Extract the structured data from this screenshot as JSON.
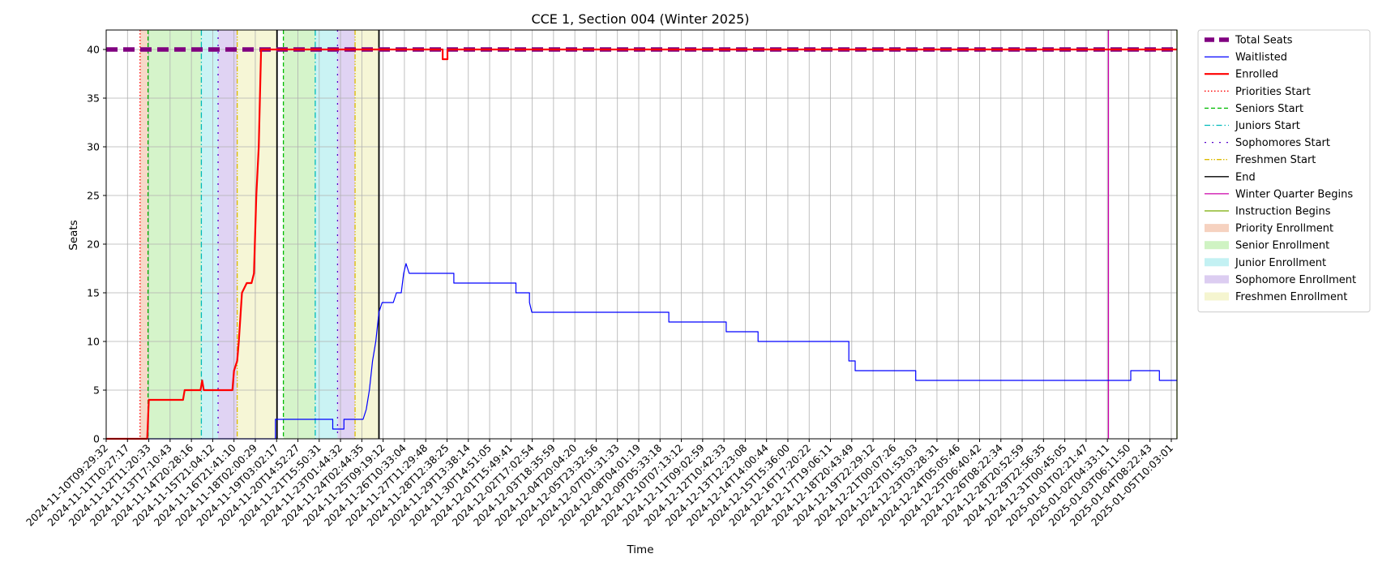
{
  "chart_data": {
    "type": "line",
    "title": "CCE 1, Section 004 (Winter 2025)",
    "xlabel": "Time",
    "ylabel": "Seats",
    "ylim": [
      0,
      42
    ],
    "yticks": [
      0,
      5,
      10,
      15,
      20,
      25,
      30,
      35,
      40
    ],
    "grid": true,
    "legend_position": "outside-right",
    "x_range": [
      "2024-11-10T09:29:32",
      "2025-01-05T10:03:01"
    ],
    "x_tick_labels": [
      "2024-11-10T09:29:32",
      "2024-11-11T10:27:17",
      "2024-11-12T11:20:33",
      "2024-11-13T17:10:43",
      "2024-11-14T20:28:16",
      "2024-11-15T21:04:12",
      "2024-11-16T21:41:10",
      "2024-11-18T02:00:29",
      "2024-11-19T03:02:17",
      "2024-11-20T14:52:27",
      "2024-11-21T15:50:31",
      "2024-11-23T01:44:32",
      "2024-11-24T02:44:35",
      "2024-11-25T09:19:12",
      "2024-11-26T10:33:04",
      "2024-11-27T11:29:48",
      "2024-11-28T12:38:25",
      "2024-11-29T13:38:14",
      "2024-11-30T14:51:05",
      "2024-12-01T15:49:41",
      "2024-12-02T17:02:54",
      "2024-12-03T18:35:59",
      "2024-12-04T20:04:20",
      "2024-12-05T23:32:56",
      "2024-12-07T01:31:33",
      "2024-12-08T04:01:19",
      "2024-12-09T05:33:18",
      "2024-12-10T07:13:12",
      "2024-12-11T09:02:59",
      "2024-12-12T10:42:33",
      "2024-12-13T12:23:08",
      "2024-12-14T14:00:44",
      "2024-12-15T15:36:00",
      "2024-12-16T17:20:22",
      "2024-12-17T19:06:11",
      "2024-12-18T20:43:49",
      "2024-12-19T22:29:12",
      "2024-12-21T00:07:26",
      "2024-12-22T01:53:03",
      "2024-12-23T03:28:31",
      "2024-12-24T05:05:46",
      "2024-12-25T06:40:42",
      "2024-12-26T08:22:34",
      "2024-12-28T20:52:59",
      "2024-12-29T22:56:35",
      "2024-12-31T00:45:05",
      "2025-01-01T02:21:47",
      "2025-01-02T04:33:11",
      "2025-01-03T06:11:50",
      "2025-01-04T08:22:43",
      "2025-01-05T10:03:01"
    ],
    "series": [
      {
        "name": "Total Seats",
        "color": "#800080",
        "style": "dashed-thick",
        "points": [
          [
            "2024-11-10T09:29:32",
            40
          ],
          [
            "2025-01-05T10:03:01",
            40
          ]
        ]
      },
      {
        "name": "Waitlisted",
        "color": "#0000ff",
        "style": "solid",
        "points": [
          [
            "2024-11-10T09:29:32",
            0
          ],
          [
            "2024-11-19T06:00:00",
            0
          ],
          [
            "2024-11-19T06:00:00",
            2
          ],
          [
            "2024-11-22T06:00:00",
            2
          ],
          [
            "2024-11-22T06:00:00",
            1
          ],
          [
            "2024-11-22T20:00:00",
            1
          ],
          [
            "2024-11-22T20:00:00",
            2
          ],
          [
            "2024-11-23T20:00:00",
            2
          ],
          [
            "2024-11-24T00:00:00",
            3
          ],
          [
            "2024-11-24T04:00:00",
            5
          ],
          [
            "2024-11-24T08:00:00",
            8
          ],
          [
            "2024-11-24T12:00:00",
            10
          ],
          [
            "2024-11-24T16:00:00",
            13
          ],
          [
            "2024-11-24T20:00:00",
            14
          ],
          [
            "2024-11-25T10:00:00",
            14
          ],
          [
            "2024-11-25T14:00:00",
            15
          ],
          [
            "2024-11-25T20:00:00",
            15
          ],
          [
            "2024-11-25T23:00:00",
            17
          ],
          [
            "2024-11-26T02:00:00",
            18
          ],
          [
            "2024-11-26T06:00:00",
            17
          ],
          [
            "2024-11-28T14:00:00",
            17
          ],
          [
            "2024-11-28T14:00:00",
            16
          ],
          [
            "2024-12-01T20:00:00",
            16
          ],
          [
            "2024-12-01T20:00:00",
            15
          ],
          [
            "2024-12-02T13:00:00",
            15
          ],
          [
            "2024-12-02T13:00:00",
            14
          ],
          [
            "2024-12-02T16:00:00",
            13
          ],
          [
            "2024-12-09T20:00:00",
            13
          ],
          [
            "2024-12-09T20:00:00",
            12
          ],
          [
            "2024-12-12T20:00:00",
            12
          ],
          [
            "2024-12-12T20:00:00",
            11
          ],
          [
            "2024-12-14T12:00:00",
            11
          ],
          [
            "2024-12-14T12:00:00",
            10
          ],
          [
            "2024-12-19T06:00:00",
            10
          ],
          [
            "2024-12-19T06:00:00",
            8
          ],
          [
            "2024-12-19T14:00:00",
            8
          ],
          [
            "2024-12-19T14:00:00",
            7
          ],
          [
            "2024-12-22T18:00:00",
            7
          ],
          [
            "2024-12-22T18:00:00",
            6
          ],
          [
            "2025-01-03T00:00:00",
            6
          ],
          [
            "2025-01-03T00:00:00",
            7
          ],
          [
            "2025-01-04T12:00:00",
            7
          ],
          [
            "2025-01-04T12:00:00",
            6
          ],
          [
            "2025-01-05T10:03:01",
            6
          ]
        ]
      },
      {
        "name": "Enrolled",
        "color": "#ff0000",
        "style": "solid-thick",
        "points": [
          [
            "2024-11-10T09:29:32",
            0
          ],
          [
            "2024-11-12T13:00:00",
            0
          ],
          [
            "2024-11-12T15:00:00",
            4
          ],
          [
            "2024-11-14T10:00:00",
            4
          ],
          [
            "2024-11-14T12:00:00",
            5
          ],
          [
            "2024-11-15T08:00:00",
            5
          ],
          [
            "2024-11-15T10:00:00",
            6
          ],
          [
            "2024-11-15T12:00:00",
            5
          ],
          [
            "2024-11-17T00:00:00",
            5
          ],
          [
            "2024-11-17T02:00:00",
            7
          ],
          [
            "2024-11-17T06:00:00",
            8
          ],
          [
            "2024-11-17T08:00:00",
            10
          ],
          [
            "2024-11-17T12:00:00",
            15
          ],
          [
            "2024-11-17T18:00:00",
            16
          ],
          [
            "2024-11-18T00:00:00",
            16
          ],
          [
            "2024-11-18T03:00:00",
            17
          ],
          [
            "2024-11-18T06:00:00",
            25
          ],
          [
            "2024-11-18T09:00:00",
            30
          ],
          [
            "2024-11-18T12:00:00",
            40
          ],
          [
            "2024-11-28T00:00:00",
            40
          ],
          [
            "2024-11-28T00:00:00",
            39
          ],
          [
            "2024-11-28T06:00:00",
            39
          ],
          [
            "2024-11-28T06:00:00",
            40
          ],
          [
            "2025-01-05T10:03:01",
            40
          ]
        ]
      }
    ],
    "markers": [
      {
        "name": "Priorities Start",
        "color": "#ff0000",
        "style": "dotted",
        "x": "2024-11-12T04:00:00"
      },
      {
        "name": "Seniors Start",
        "color": "#00bb00",
        "style": "dashed",
        "x": "2024-11-12T14:00:00"
      },
      {
        "name": "Juniors Start",
        "color": "#00bbbb",
        "style": "dashdot",
        "x": "2024-11-15T09:00:00"
      },
      {
        "name": "Sophomores Start",
        "color": "#5500cc",
        "style": "dashdotted",
        "x": "2024-11-16T06:00:00"
      },
      {
        "name": "Freshmen Start",
        "color": "#ddbb00",
        "style": "dashdotdot",
        "x": "2024-11-17T06:00:00"
      },
      {
        "name": "End",
        "color": "#000000",
        "style": "solid",
        "x": "2024-11-19T08:00:00"
      },
      {
        "name": "Seniors Start",
        "color": "#00bb00",
        "style": "dashed",
        "x": "2024-11-19T16:00:00"
      },
      {
        "name": "Juniors Start",
        "color": "#00bbbb",
        "style": "dashdot",
        "x": "2024-11-21T08:00:00"
      },
      {
        "name": "Sophomores Start",
        "color": "#5500cc",
        "style": "dashdotted",
        "x": "2024-11-22T12:00:00"
      },
      {
        "name": "Freshmen Start",
        "color": "#ddbb00",
        "style": "dashdotdot",
        "x": "2024-11-23T10:00:00"
      },
      {
        "name": "End",
        "color": "#000000",
        "style": "solid",
        "x": "2024-11-24T16:00:00"
      },
      {
        "name": "Winter Quarter Begins",
        "color": "#cc00aa",
        "style": "solid",
        "x": "2025-01-01T20:00:00"
      },
      {
        "name": "Instruction Begins",
        "color": "#77aa00",
        "style": "solid",
        "x": "2025-01-05T10:03:01"
      }
    ],
    "spans": [
      {
        "name": "Priority Enrollment",
        "color": "#f4c7b0",
        "from": "2024-11-12T04:00:00",
        "to": "2024-11-12T14:00:00"
      },
      {
        "name": "Senior Enrollment",
        "color": "#c3f0b4",
        "from": "2024-11-12T14:00:00",
        "to": "2024-11-15T09:00:00"
      },
      {
        "name": "Junior Enrollment",
        "color": "#b4eef0",
        "from": "2024-11-15T09:00:00",
        "to": "2024-11-16T06:00:00"
      },
      {
        "name": "Sophomore Enrollment",
        "color": "#d3c0ee",
        "from": "2024-11-16T06:00:00",
        "to": "2024-11-17T06:00:00"
      },
      {
        "name": "Freshmen Enrollment",
        "color": "#f2f2c4",
        "from": "2024-11-17T06:00:00",
        "to": "2024-11-19T08:00:00"
      },
      {
        "name": "Senior Enrollment",
        "color": "#c3f0b4",
        "from": "2024-11-19T16:00:00",
        "to": "2024-11-21T08:00:00"
      },
      {
        "name": "Junior Enrollment",
        "color": "#b4eef0",
        "from": "2024-11-21T08:00:00",
        "to": "2024-11-22T12:00:00"
      },
      {
        "name": "Sophomore Enrollment",
        "color": "#d3c0ee",
        "from": "2024-11-22T12:00:00",
        "to": "2024-11-23T10:00:00"
      },
      {
        "name": "Freshmen Enrollment",
        "color": "#f2f2c4",
        "from": "2024-11-23T10:00:00",
        "to": "2024-11-24T16:00:00"
      }
    ],
    "legend": [
      {
        "label": "Total Seats",
        "kind": "line",
        "color": "#800080",
        "dash": "thick"
      },
      {
        "label": "Waitlisted",
        "kind": "line",
        "color": "#0000ff",
        "dash": "solid"
      },
      {
        "label": "Enrolled",
        "kind": "line",
        "color": "#ff0000",
        "dash": "solid-thick"
      },
      {
        "label": "Priorities Start",
        "kind": "line",
        "color": "#ff0000",
        "dash": "dotted"
      },
      {
        "label": "Seniors Start",
        "kind": "line",
        "color": "#00bb00",
        "dash": "dashed"
      },
      {
        "label": "Juniors Start",
        "kind": "line",
        "color": "#00bbbb",
        "dash": "dashdot"
      },
      {
        "label": "Sophomores Start",
        "kind": "line",
        "color": "#5500cc",
        "dash": "dashdotted"
      },
      {
        "label": "Freshmen Start",
        "kind": "line",
        "color": "#ddbb00",
        "dash": "dashdotdot"
      },
      {
        "label": "End",
        "kind": "line",
        "color": "#000000",
        "dash": "solid"
      },
      {
        "label": "Winter Quarter Begins",
        "kind": "line",
        "color": "#cc00aa",
        "dash": "solid"
      },
      {
        "label": "Instruction Begins",
        "kind": "line",
        "color": "#77aa00",
        "dash": "solid"
      },
      {
        "label": "Priority Enrollment",
        "kind": "patch",
        "color": "#f4c7b0"
      },
      {
        "label": "Senior Enrollment",
        "kind": "patch",
        "color": "#c3f0b4"
      },
      {
        "label": "Junior Enrollment",
        "kind": "patch",
        "color": "#b4eef0"
      },
      {
        "label": "Sophomore Enrollment",
        "kind": "patch",
        "color": "#d3c0ee"
      },
      {
        "label": "Freshmen Enrollment",
        "kind": "patch",
        "color": "#f2f2c4"
      }
    ]
  }
}
